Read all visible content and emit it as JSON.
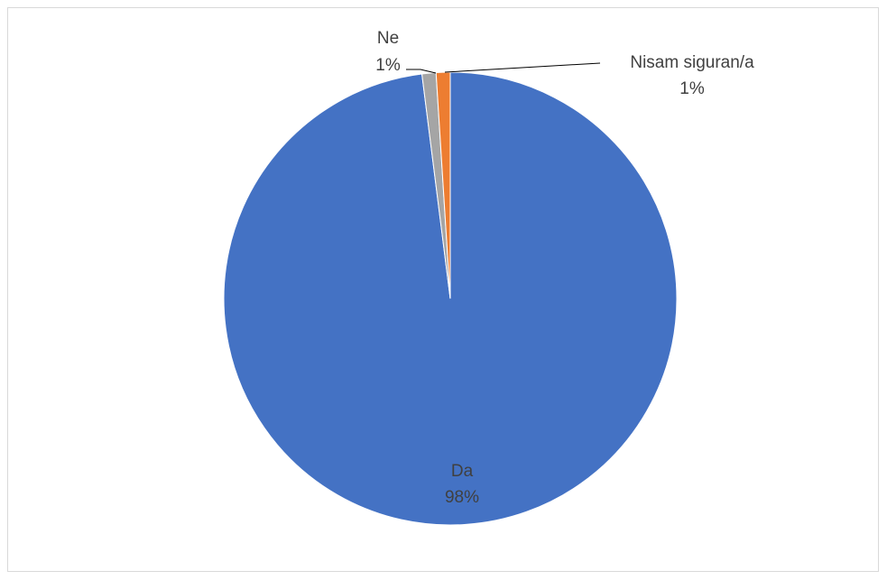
{
  "chart_data": {
    "type": "pie",
    "title": "",
    "slices": [
      {
        "name": "Da",
        "value": 98,
        "label": "98%",
        "color": "#4472C4"
      },
      {
        "name": "Nisam siguran/a",
        "value": 1,
        "label": "1%",
        "color": "#A5A5A5"
      },
      {
        "name": "Ne",
        "value": 1,
        "label": "1%",
        "color": "#ED7D31"
      }
    ],
    "legend": "none",
    "data_labels": "category and percentage"
  }
}
